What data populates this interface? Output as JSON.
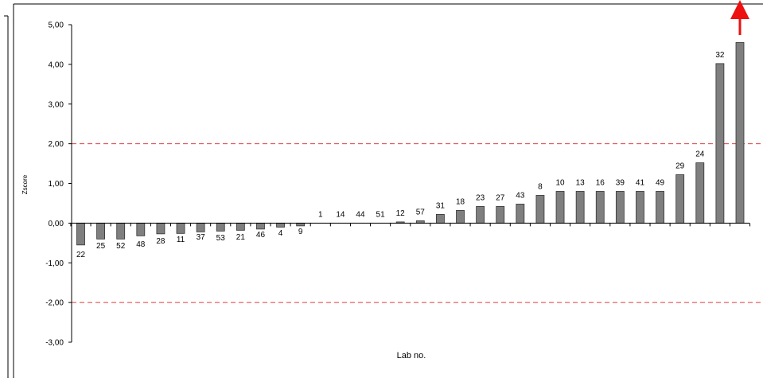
{
  "chart_data": {
    "type": "bar",
    "title": "",
    "xlabel": "Lab no.",
    "ylabel": "Zscore",
    "ylim": [
      -3,
      5
    ],
    "yticks": [
      "5,00",
      "4,00",
      "3,00",
      "2,00",
      "1,00",
      "0,00",
      "-1,00",
      "-2,00",
      "-3,00"
    ],
    "ytick_values": [
      5,
      4,
      3,
      2,
      1,
      0,
      -1,
      -2,
      -3
    ],
    "reference_lines": [
      2,
      -2
    ],
    "reference_color": "#e03c3c",
    "bar_color": "#7f7f7f",
    "arrow_color": "#ee1111",
    "offscale_note": "bar 32-right exceeds axis (arrow)",
    "categories": [
      "22",
      "25",
      "52",
      "48",
      "28",
      "11",
      "37",
      "53",
      "21",
      "46",
      "4",
      "9",
      "1",
      "14",
      "44",
      "51",
      "12",
      "57",
      "31",
      "18",
      "23",
      "27",
      "43",
      "8",
      "10",
      "13",
      "16",
      "39",
      "41",
      "49",
      "29",
      "24",
      "32",
      ""
    ],
    "values": [
      -0.55,
      -0.4,
      -0.4,
      -0.32,
      -0.27,
      -0.26,
      -0.22,
      -0.2,
      -0.18,
      -0.15,
      -0.1,
      -0.07,
      0,
      0,
      0,
      0,
      0.03,
      0.06,
      0.22,
      0.32,
      0.42,
      0.42,
      0.48,
      0.7,
      0.8,
      0.8,
      0.8,
      0.8,
      0.8,
      0.8,
      1.22,
      1.52,
      4.02,
      4.55
    ],
    "grid": false,
    "legend": "none"
  }
}
